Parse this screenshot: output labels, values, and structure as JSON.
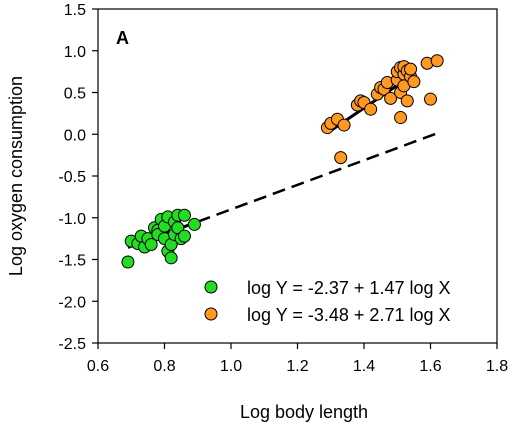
{
  "chart_data": {
    "type": "scatter",
    "panel_label": "A",
    "xlabel": "Log body length",
    "ylabel": "Log oxygen consumption",
    "xlim": [
      0.6,
      1.8
    ],
    "ylim": [
      -2.5,
      1.5
    ],
    "x_ticks": [
      0.6,
      0.8,
      1.0,
      1.2,
      1.4,
      1.6,
      1.8
    ],
    "y_ticks": [
      -2.5,
      -2.0,
      -1.5,
      -1.0,
      -0.5,
      0.0,
      0.5,
      1.0,
      1.5
    ],
    "x_tick_labels": [
      "0.6",
      "0.8",
      "1.0",
      "1.2",
      "1.4",
      "1.6",
      "1.8"
    ],
    "y_tick_labels": [
      "-2.5",
      "-2.0",
      "-1.5",
      "-1.0",
      "-0.5",
      "0.0",
      "0.5",
      "1.0",
      "1.5"
    ],
    "grid": false,
    "legend_position": "bottom-right",
    "series": [
      {
        "label": "log Y = -2.37 + 1.47 log X",
        "color": "#22dd22",
        "points": [
          [
            0.69,
            -1.53
          ],
          [
            0.7,
            -1.28
          ],
          [
            0.72,
            -1.31
          ],
          [
            0.73,
            -1.22
          ],
          [
            0.74,
            -1.35
          ],
          [
            0.75,
            -1.25
          ],
          [
            0.76,
            -1.32
          ],
          [
            0.77,
            -1.12
          ],
          [
            0.78,
            -1.15
          ],
          [
            0.78,
            -1.2
          ],
          [
            0.79,
            -1.02
          ],
          [
            0.8,
            -1.1
          ],
          [
            0.8,
            -1.25
          ],
          [
            0.81,
            -0.99
          ],
          [
            0.81,
            -1.4
          ],
          [
            0.82,
            -1.32
          ],
          [
            0.82,
            -1.48
          ],
          [
            0.83,
            -1.05
          ],
          [
            0.83,
            -1.2
          ],
          [
            0.84,
            -0.97
          ],
          [
            0.84,
            -1.12
          ],
          [
            0.85,
            -1.25
          ],
          [
            0.86,
            -0.97
          ],
          [
            0.86,
            -1.22
          ],
          [
            0.89,
            -1.08
          ]
        ],
        "fit": {
          "x_start": 0.69,
          "x_end": 0.9
        }
      },
      {
        "label": "log Y = -3.48 + 2.71 log X",
        "color": "#ff9922",
        "points": [
          [
            1.29,
            0.08
          ],
          [
            1.3,
            0.13
          ],
          [
            1.32,
            0.18
          ],
          [
            1.33,
            -0.28
          ],
          [
            1.34,
            0.11
          ],
          [
            1.38,
            0.35
          ],
          [
            1.39,
            0.4
          ],
          [
            1.4,
            0.38
          ],
          [
            1.42,
            0.3
          ],
          [
            1.44,
            0.48
          ],
          [
            1.45,
            0.56
          ],
          [
            1.46,
            0.54
          ],
          [
            1.47,
            0.62
          ],
          [
            1.48,
            0.43
          ],
          [
            1.5,
            0.65
          ],
          [
            1.5,
            0.75
          ],
          [
            1.51,
            0.8
          ],
          [
            1.51,
            0.2
          ],
          [
            1.51,
            0.5
          ],
          [
            1.52,
            0.72
          ],
          [
            1.52,
            0.58
          ],
          [
            1.52,
            0.81
          ],
          [
            1.53,
            0.76
          ],
          [
            1.53,
            0.4
          ],
          [
            1.54,
            0.69
          ],
          [
            1.54,
            0.78
          ],
          [
            1.55,
            0.63
          ],
          [
            1.59,
            0.85
          ],
          [
            1.6,
            0.42
          ],
          [
            1.62,
            0.88
          ]
        ],
        "fit": {
          "x_start": 1.29,
          "x_end": 1.54
        }
      }
    ],
    "extrapolation": {
      "style": "dashed",
      "x_start": 0.9,
      "x_end": 1.62,
      "of_series": 0
    }
  }
}
